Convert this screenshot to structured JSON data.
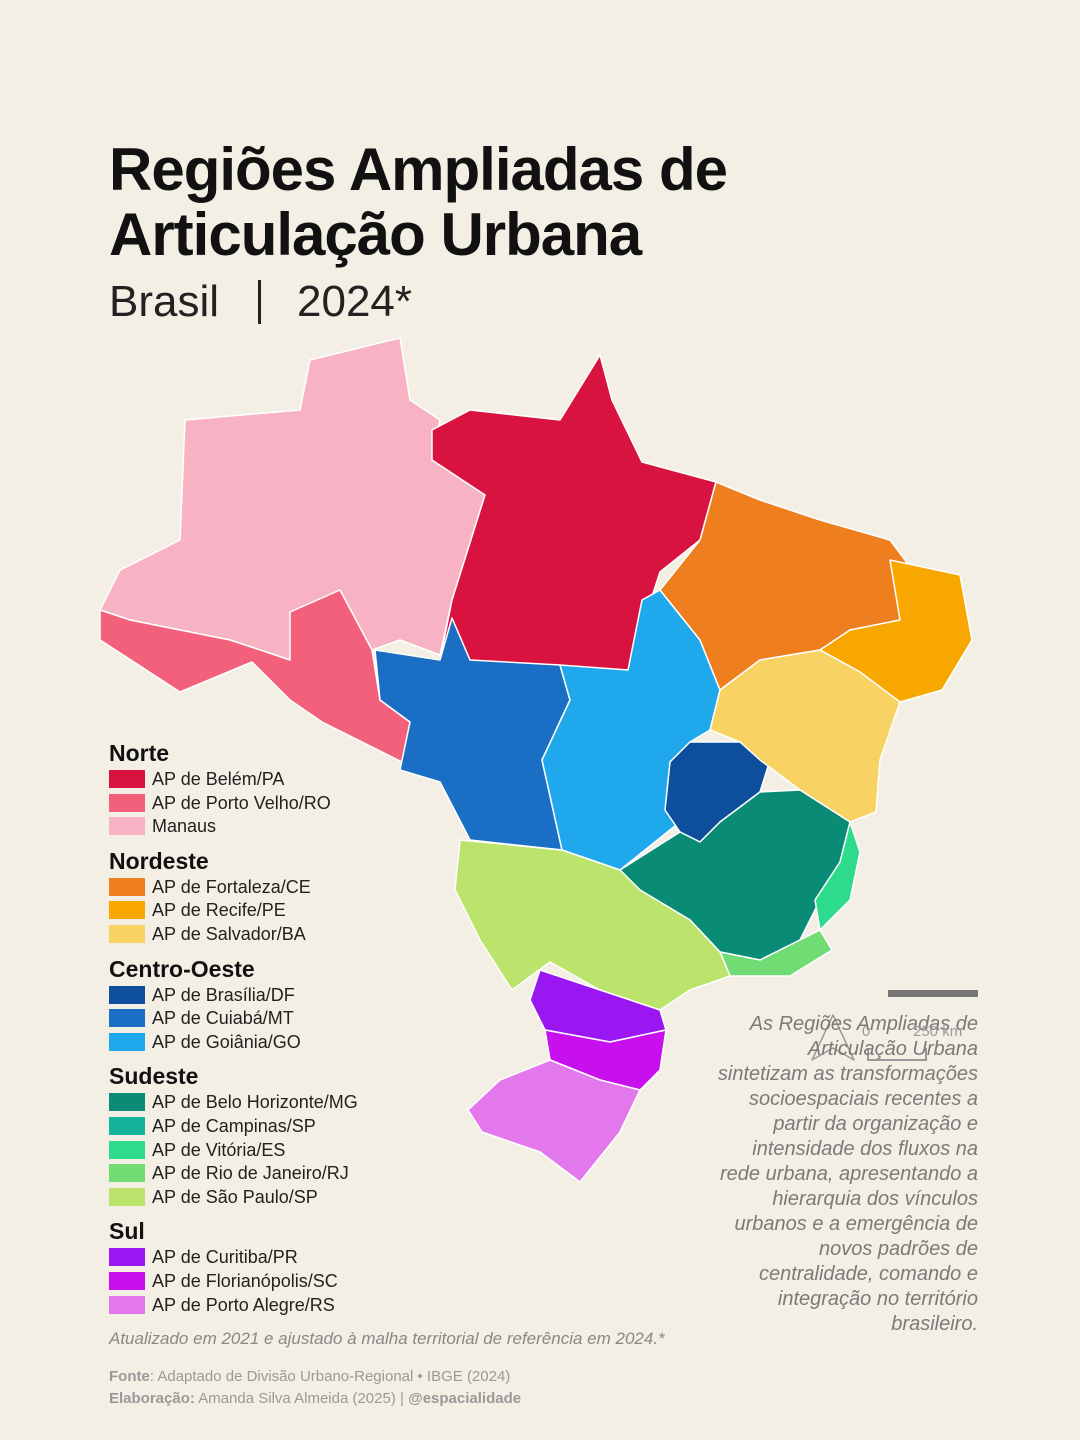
{
  "header": {
    "title_lines": [
      "Regiões Ampliadas de",
      "Articulação Urbana"
    ],
    "place": "Brasil",
    "year": "2024*"
  },
  "legend": [
    {
      "group": "Norte",
      "items": [
        {
          "label": "AP de Belém/PA",
          "color": "#d9133f"
        },
        {
          "label": "AP de Porto Velho/RO",
          "color": "#f2607c"
        },
        {
          "label": "Manaus",
          "color": "#f7b3c4"
        }
      ]
    },
    {
      "group": "Nordeste",
      "items": [
        {
          "label": "AP de Fortaleza/CE",
          "color": "#ef7f1e"
        },
        {
          "label": "AP de Recife/PE",
          "color": "#f8a600"
        },
        {
          "label": "AP de Salvador/BA",
          "color": "#f9d264"
        }
      ]
    },
    {
      "group": "Centro-Oeste",
      "items": [
        {
          "label": "AP de Brasília/DF",
          "color": "#0d4f9c"
        },
        {
          "label": "AP de Cuiabá/MT",
          "color": "#1a6fc4"
        },
        {
          "label": "AP de Goiânia/GO",
          "color": "#1fa8ec"
        }
      ]
    },
    {
      "group": "Sudeste",
      "items": [
        {
          "label": "AP de Belo Horizonte/MG",
          "color": "#0a8b76"
        },
        {
          "label": "AP de Campinas/SP",
          "color": "#16b39b"
        },
        {
          "label": "AP de Vitória/ES",
          "color": "#2edb8c"
        },
        {
          "label": "AP de Rio de Janeiro/RJ",
          "color": "#72dc74"
        },
        {
          "label": "AP de São Paulo/SP",
          "color": "#bce46c"
        }
      ]
    },
    {
      "group": "Sul",
      "items": [
        {
          "label": "AP de Curitiba/PR",
          "color": "#9b17f1"
        },
        {
          "label": "AP de Florianópolis/SC",
          "color": "#c810ef"
        },
        {
          "label": "AP de Porto Alegre/RS",
          "color": "#e377ec"
        }
      ]
    }
  ],
  "description_lines": [
    "As Regiões Ampliadas de",
    "Articulação Urbana",
    "sintetizam as transformações",
    "socioespaciais recentes a",
    "partir da organização e",
    "intensidade dos fluxos na",
    "rede urbana,  apresentando a",
    "hierarquia dos vínculos",
    "urbanos e a emergência de",
    "novos padrões de",
    "centralidade,  comando e",
    "integração no território",
    "brasileiro."
  ],
  "note": "Atualizado em 2021 e ajustado à malha territorial de referência em 2024.*",
  "source": {
    "label": "Fonte",
    "text": "Adaptado de Divisão Urbano-Regional • IBGE (2024)"
  },
  "credit": {
    "label": "Elaboração:",
    "text": "Amanda Silva Almeida (2025) |",
    "handle": "@espacialidade"
  },
  "scale": {
    "start": "0",
    "end": "250 km"
  }
}
